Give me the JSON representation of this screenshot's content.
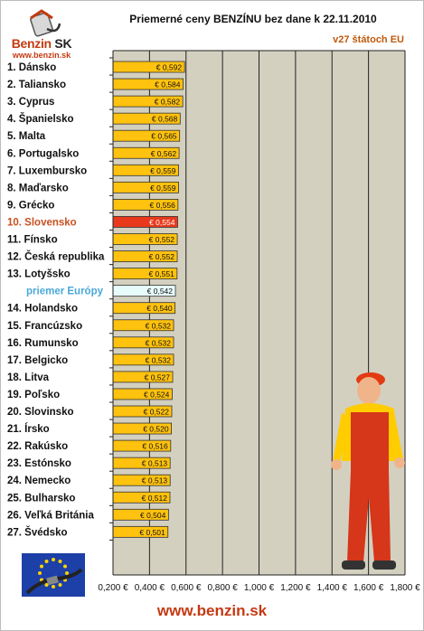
{
  "header": {
    "logo_brand": "Benzin",
    "logo_brand_suffix": "SK",
    "logo_url": "www.benzin.sk",
    "title": "Priemerné ceny BENZÍNU bez dane k 22.11.2010",
    "subtitle": "v27 štátoch EU"
  },
  "footer": {
    "url": "www.benzin.sk"
  },
  "colors": {
    "bar": "#ffc20e",
    "bar_highlight": "#e8391c",
    "bar_average": "#e8fbfb",
    "plot_bg": "#d4d0c0",
    "label_highlight": "#c8501e",
    "label_average": "#4aa8d8"
  },
  "chart_data": {
    "type": "bar",
    "orientation": "horizontal",
    "categories": [
      "1. Dánsko",
      "2. Taliansko",
      "3. Cyprus",
      "4. Španielsko",
      "5. Malta",
      "6. Portugalsko",
      "7. Luxembursko",
      "8. Maďarsko",
      "9. Grécko",
      "10. Slovensko",
      "11. Fínsko",
      "12. Česká republika",
      "13. Lotyšsko",
      "priemer Európy",
      "14. Holandsko",
      "15. Francúzsko",
      "16. Rumunsko",
      "17. Belgicko",
      "18. Litva",
      "19. Poľsko",
      "20. Slovinsko",
      "21. Írsko",
      "22. Rakúsko",
      "23. Estónsko",
      "24. Nemecko",
      "25. Bulharsko",
      "26. Veľká Británia",
      "27. Švédsko"
    ],
    "values": [
      0.592,
      0.584,
      0.582,
      0.568,
      0.565,
      0.562,
      0.559,
      0.559,
      0.556,
      0.554,
      0.552,
      0.552,
      0.551,
      0.542,
      0.54,
      0.532,
      0.532,
      0.532,
      0.527,
      0.524,
      0.522,
      0.52,
      0.516,
      0.513,
      0.513,
      0.512,
      0.504,
      0.501
    ],
    "value_labels": [
      "€ 0,592",
      "€ 0,584",
      "€ 0,582",
      "€ 0,568",
      "€ 0,565",
      "€ 0,562",
      "€ 0,559",
      "€ 0,559",
      "€ 0,556",
      "€ 0,554",
      "€ 0,552",
      "€ 0,552",
      "€ 0,551",
      "€ 0,542",
      "€ 0,540",
      "€ 0,532",
      "€ 0,532",
      "€ 0,532",
      "€ 0,527",
      "€ 0,524",
      "€ 0,522",
      "€ 0,520",
      "€ 0,516",
      "€ 0,513",
      "€ 0,513",
      "€ 0,512",
      "€ 0,504",
      "€ 0,501"
    ],
    "highlight_index": 9,
    "average_index": 13,
    "xlim": [
      0.2,
      1.8
    ],
    "xticks": [
      0.2,
      0.4,
      0.6,
      0.8,
      1.0,
      1.2,
      1.4,
      1.6,
      1.8
    ],
    "xtick_labels": [
      "0,200 €",
      "0,400 €",
      "0,600 €",
      "0,800 €",
      "1,000 €",
      "1,200 €",
      "1,400 €",
      "1,600 €",
      "1,800 €"
    ],
    "grid": true,
    "legend": false
  }
}
